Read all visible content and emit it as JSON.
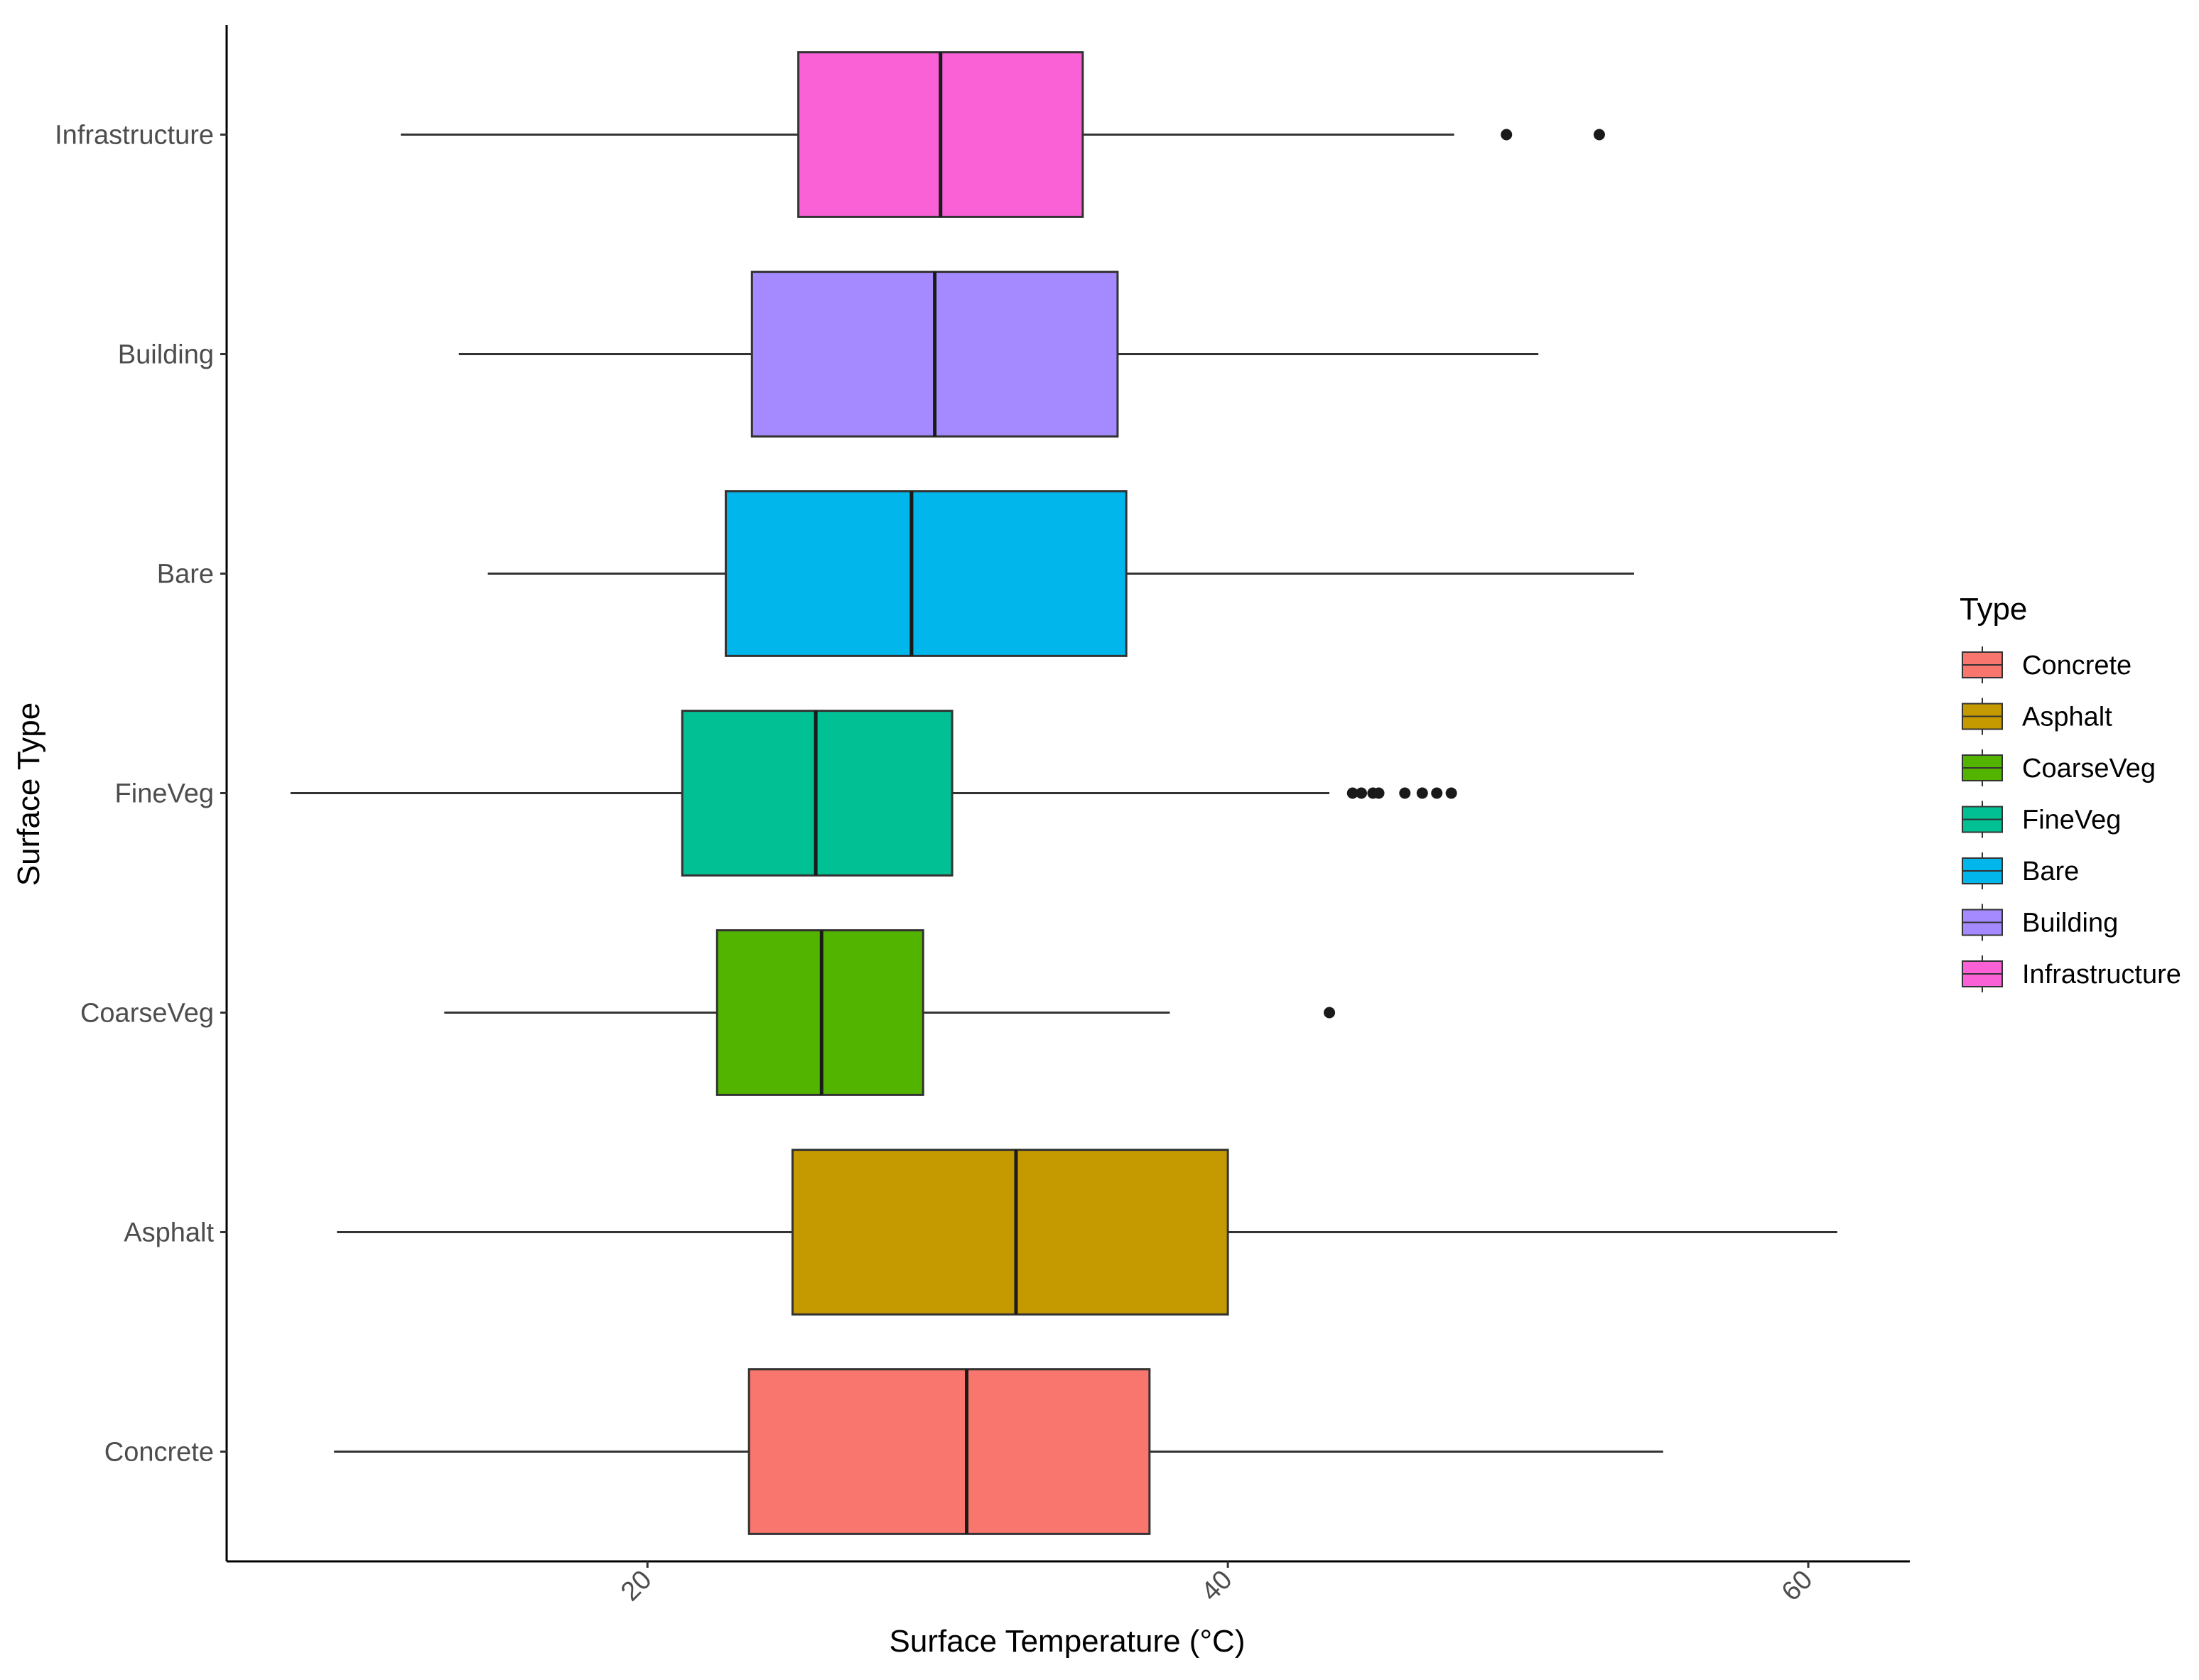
{
  "chart_data": {
    "type": "boxplot",
    "orientation": "horizontal",
    "xlabel": "Surface Temperature (°C)",
    "ylabel": "Surface Type",
    "xlim": [
      5.5,
      63.5
    ],
    "x_ticks": [
      {
        "value": 20,
        "label": "20"
      },
      {
        "value": 40,
        "label": "40"
      },
      {
        "value": 60,
        "label": "60"
      }
    ],
    "grid": false,
    "legend": {
      "title": "Type",
      "position": "right",
      "items": [
        {
          "label": "Concrete",
          "color": "#F8766D"
        },
        {
          "label": "Asphalt",
          "color": "#C49A00"
        },
        {
          "label": "CoarseVeg",
          "color": "#53B400"
        },
        {
          "label": "FineVeg",
          "color": "#00C094"
        },
        {
          "label": "Bare",
          "color": "#00B6EB"
        },
        {
          "label": "Building",
          "color": "#A58AFF"
        },
        {
          "label": "Infrastructure",
          "color": "#FB61D7"
        }
      ]
    },
    "categories": [
      "Concrete",
      "Asphalt",
      "CoarseVeg",
      "FineVeg",
      "Bare",
      "Building",
      "Infrastructure"
    ],
    "boxes": [
      {
        "category": "Concrete",
        "color": "#F8766D",
        "whisker_low": 9.2,
        "q1": 23.5,
        "median": 31.0,
        "q3": 37.3,
        "whisker_high": 55.0,
        "outliers": []
      },
      {
        "category": "Asphalt",
        "color": "#C49A00",
        "whisker_low": 9.3,
        "q1": 25.0,
        "median": 32.7,
        "q3": 40.0,
        "whisker_high": 61.0,
        "outliers": []
      },
      {
        "category": "CoarseVeg",
        "color": "#53B400",
        "whisker_low": 13.0,
        "q1": 22.4,
        "median": 26.0,
        "q3": 29.5,
        "whisker_high": 38.0,
        "outliers": [
          43.5
        ]
      },
      {
        "category": "FineVeg",
        "color": "#00C094",
        "whisker_low": 7.7,
        "q1": 21.2,
        "median": 25.8,
        "q3": 30.5,
        "whisker_high": 43.5,
        "outliers": [
          44.3,
          44.6,
          45.0,
          45.2,
          46.1,
          46.7,
          47.2,
          47.7
        ]
      },
      {
        "category": "Bare",
        "color": "#00B6EB",
        "whisker_low": 14.5,
        "q1": 22.7,
        "median": 29.1,
        "q3": 36.5,
        "whisker_high": 54.0,
        "outliers": []
      },
      {
        "category": "Building",
        "color": "#A58AFF",
        "whisker_low": 13.5,
        "q1": 23.6,
        "median": 29.9,
        "q3": 36.2,
        "whisker_high": 50.7,
        "outliers": []
      },
      {
        "category": "Infrastructure",
        "color": "#FB61D7",
        "whisker_low": 11.5,
        "q1": 25.2,
        "median": 30.1,
        "q3": 35.0,
        "whisker_high": 47.8,
        "outliers": [
          49.6,
          52.8
        ]
      }
    ]
  }
}
